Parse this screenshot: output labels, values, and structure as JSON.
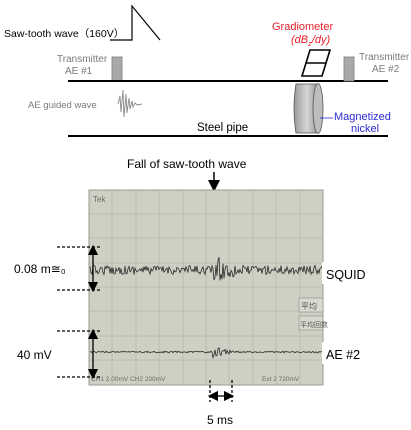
{
  "setup": {
    "sawtooth_label": "Saw-tooth wave（160V）",
    "transmitter1_line1": "Transmitter",
    "transmitter1_line2": "AE #1",
    "transmitter2_line1": "Transmitter",
    "transmitter2_line2": "AE #2",
    "gradiometer_line1": "Gradiometer",
    "gradiometer_line2_prefix": "(dB",
    "gradiometer_line2_sub": "z",
    "gradiometer_line2_suffix": "/dy)",
    "guided_wave_label": "AE guided wave",
    "pipe_label": "Steel pipe",
    "nickel_line1": "Magnetized",
    "nickel_line2": "nickel"
  },
  "scope": {
    "fall_label": "Fall of saw-tooth wave",
    "squid_scale": "0.08 m≅₀",
    "squid_label": "SQUID",
    "ae_scale": "40 mV",
    "ae_label": "AE #2",
    "time_label": "5 ms",
    "screen_top_left": "Tek",
    "screen_bottom": "CH1  2.00mV  CH2  200mV",
    "screen_bottom_right": "Ext  2  720mV",
    "side_menu": [
      "平均",
      "平均回数"
    ]
  },
  "colors": {
    "gradiometer": "#e8202a",
    "nickel": "#2b2bd6",
    "screen": "#cfcfc4",
    "transmitter": "#a9a9a9"
  }
}
